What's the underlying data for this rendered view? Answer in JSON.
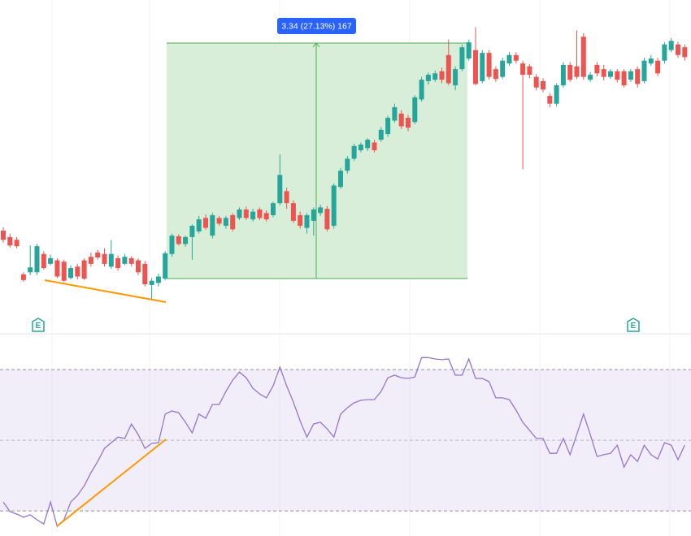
{
  "chart_data": [
    {
      "type": "candlestick",
      "colors": {
        "up": "#26a69a",
        "down": "#ef5350"
      },
      "ylim": [
        11.54,
        16.26
      ],
      "measure_label": "3.34 (27.13%) 167",
      "events": [
        "E",
        "E"
      ],
      "candles": [
        [
          12.99,
          13.04,
          12.82,
          12.86
        ],
        [
          12.9,
          12.95,
          12.75,
          12.78
        ],
        [
          12.86,
          12.9,
          12.74,
          12.77
        ],
        [
          12.37,
          12.4,
          12.27,
          12.29
        ],
        [
          12.4,
          12.78,
          12.36,
          12.47
        ],
        [
          12.4,
          12.8,
          12.36,
          12.77
        ],
        [
          12.66,
          12.7,
          12.44,
          12.46
        ],
        [
          12.52,
          12.65,
          12.5,
          12.6
        ],
        [
          12.57,
          12.6,
          12.32,
          12.34
        ],
        [
          12.55,
          12.58,
          12.26,
          12.28
        ],
        [
          12.32,
          12.5,
          12.3,
          12.46
        ],
        [
          12.48,
          12.52,
          12.3,
          12.34
        ],
        [
          12.57,
          12.6,
          12.29,
          12.31
        ],
        [
          12.62,
          12.68,
          12.48,
          12.52
        ],
        [
          12.68,
          12.72,
          12.58,
          12.61
        ],
        [
          12.66,
          12.74,
          12.48,
          12.52
        ],
        [
          12.48,
          12.86,
          12.45,
          12.66
        ],
        [
          12.6,
          12.64,
          12.42,
          12.46
        ],
        [
          12.52,
          12.66,
          12.5,
          12.62
        ],
        [
          12.6,
          12.63,
          12.48,
          12.52
        ],
        [
          12.57,
          12.6,
          12.36,
          12.4
        ],
        [
          12.52,
          12.56,
          12.2,
          12.23
        ],
        [
          12.22,
          12.32,
          12.0,
          12.28
        ],
        [
          12.25,
          12.38,
          12.2,
          12.34
        ],
        [
          12.31,
          12.7,
          12.29,
          12.67
        ],
        [
          12.66,
          12.95,
          12.62,
          12.92
        ],
        [
          12.91,
          12.94,
          12.78,
          12.8
        ],
        [
          12.8,
          12.92,
          12.76,
          12.9
        ],
        [
          12.9,
          13.08,
          12.58,
          13.06
        ],
        [
          12.98,
          13.2,
          12.95,
          13.15
        ],
        [
          13.17,
          13.22,
          13.0,
          13.03
        ],
        [
          12.92,
          13.24,
          12.88,
          13.21
        ],
        [
          13.17,
          13.2,
          13.06,
          13.09
        ],
        [
          13.06,
          13.2,
          13.02,
          13.17
        ],
        [
          13.21,
          13.24,
          12.98,
          13.01
        ],
        [
          13.17,
          13.32,
          13.14,
          13.29
        ],
        [
          13.29,
          13.33,
          13.14,
          13.17
        ],
        [
          13.15,
          13.3,
          13.12,
          13.26
        ],
        [
          13.29,
          13.32,
          13.14,
          13.17
        ],
        [
          13.24,
          13.28,
          13.12,
          13.15
        ],
        [
          13.21,
          13.4,
          13.18,
          13.38
        ],
        [
          13.38,
          14.07,
          13.35,
          13.78
        ],
        [
          13.55,
          13.6,
          13.3,
          13.38
        ],
        [
          13.38,
          13.42,
          13.1,
          13.13
        ],
        [
          13.21,
          13.26,
          13.02,
          13.06
        ],
        [
          13.03,
          13.24,
          12.95,
          13.21
        ],
        [
          13.13,
          13.32,
          12.92,
          13.29
        ],
        [
          13.24,
          13.36,
          13.2,
          13.32
        ],
        [
          13.3,
          13.34,
          12.98,
          13.01
        ],
        [
          13.06,
          13.66,
          13.02,
          13.63
        ],
        [
          13.61,
          13.88,
          13.58,
          13.84
        ],
        [
          13.84,
          14.05,
          13.8,
          14.01
        ],
        [
          14.01,
          14.22,
          13.98,
          14.19
        ],
        [
          14.13,
          14.24,
          14.1,
          14.21
        ],
        [
          14.16,
          14.3,
          14.12,
          14.28
        ],
        [
          14.24,
          14.28,
          14.1,
          14.13
        ],
        [
          14.28,
          14.46,
          14.25,
          14.42
        ],
        [
          14.36,
          14.62,
          14.32,
          14.59
        ],
        [
          14.55,
          14.79,
          14.52,
          14.74
        ],
        [
          14.65,
          14.7,
          14.43,
          14.47
        ],
        [
          14.59,
          14.63,
          14.4,
          14.45
        ],
        [
          14.53,
          14.91,
          14.5,
          14.88
        ],
        [
          14.85,
          15.17,
          14.82,
          15.13
        ],
        [
          15.11,
          15.23,
          15.06,
          15.2
        ],
        [
          15.13,
          15.26,
          15.1,
          15.22
        ],
        [
          15.25,
          15.3,
          15.08,
          15.13
        ],
        [
          15.48,
          15.7,
          15.05,
          15.08
        ],
        [
          15.05,
          15.32,
          14.98,
          15.28
        ],
        [
          15.28,
          15.63,
          15.25,
          15.59
        ],
        [
          15.43,
          15.7,
          15.4,
          15.66
        ],
        [
          15.55,
          15.87,
          15.05,
          15.07
        ],
        [
          15.11,
          15.55,
          15.08,
          15.51
        ],
        [
          15.51,
          15.55,
          15.13,
          15.17
        ],
        [
          15.28,
          15.32,
          15.1,
          15.14
        ],
        [
          15.17,
          15.44,
          15.14,
          15.4
        ],
        [
          15.36,
          15.52,
          15.33,
          15.48
        ],
        [
          15.48,
          15.52,
          15.36,
          15.4
        ],
        [
          15.36,
          15.4,
          13.86,
          15.2
        ],
        [
          15.32,
          15.35,
          15.15,
          15.2
        ],
        [
          15.17,
          15.21,
          14.98,
          15.02
        ],
        [
          15.11,
          15.15,
          14.95,
          14.99
        ],
        [
          14.9,
          14.94,
          14.74,
          14.79
        ],
        [
          14.79,
          15.08,
          14.75,
          15.05
        ],
        [
          15.05,
          15.38,
          15.02,
          15.34
        ],
        [
          15.34,
          15.38,
          15.1,
          15.13
        ],
        [
          15.32,
          15.83,
          15.14,
          15.17
        ],
        [
          15.74,
          15.79,
          15.13,
          15.17
        ],
        [
          15.13,
          15.24,
          15.1,
          15.2
        ],
        [
          15.34,
          15.38,
          15.18,
          15.22
        ],
        [
          15.28,
          15.34,
          15.12,
          15.17
        ],
        [
          15.17,
          15.28,
          15.14,
          15.25
        ],
        [
          15.25,
          15.28,
          15.09,
          15.13
        ],
        [
          15.25,
          15.28,
          15.02,
          15.05
        ],
        [
          15.13,
          15.28,
          15.1,
          15.25
        ],
        [
          15.28,
          15.32,
          15.02,
          15.07
        ],
        [
          15.11,
          15.44,
          15.08,
          15.4
        ],
        [
          15.36,
          15.48,
          15.33,
          15.43
        ],
        [
          15.4,
          15.44,
          15.18,
          15.22
        ],
        [
          15.4,
          15.66,
          15.36,
          15.63
        ],
        [
          15.55,
          15.72,
          15.52,
          15.68
        ],
        [
          15.63,
          15.67,
          15.44,
          15.48
        ],
        [
          15.59,
          15.63,
          15.4,
          15.45
        ]
      ]
    },
    {
      "type": "line",
      "color": "#9575cd",
      "ylim": [
        22.9,
        79.9
      ],
      "levels": [
        70,
        50,
        30
      ],
      "values": [
        32.5,
        29.8,
        29.1,
        28.2,
        28.9,
        27.5,
        26.3,
        32.5,
        25.6,
        27.5,
        32.5,
        34.4,
        37.1,
        40.8,
        44.0,
        47.7,
        49.3,
        50.9,
        50.5,
        54.6,
        51.6,
        47.7,
        49.1,
        49.3,
        57.4,
        58.3,
        57.8,
        55.1,
        52.1,
        57.4,
        56.2,
        60.1,
        60.1,
        63.8,
        67.0,
        69.3,
        67.7,
        64.7,
        63.1,
        62.0,
        65.4,
        70.7,
        65.4,
        60.8,
        55.5,
        50.9,
        54.6,
        55.1,
        53.2,
        50.9,
        57.4,
        59.2,
        60.6,
        61.3,
        61.5,
        61.5,
        63.8,
        67.7,
        68.4,
        67.7,
        67.5,
        67.9,
        73.4,
        73.4,
        73.0,
        72.8,
        73.0,
        68.4,
        68.4,
        73.0,
        67.5,
        67.5,
        66.6,
        62.0,
        62.0,
        61.5,
        58.5,
        55.1,
        52.8,
        50.5,
        50.5,
        46.3,
        46.3,
        50.5,
        45.9,
        51.6,
        57.4,
        51.6,
        45.4,
        45.9,
        46.3,
        48.6,
        42.4,
        45.9,
        44.0,
        48.6,
        45.9,
        44.7,
        49.3,
        48.6,
        44.5,
        48.6
      ]
    }
  ]
}
